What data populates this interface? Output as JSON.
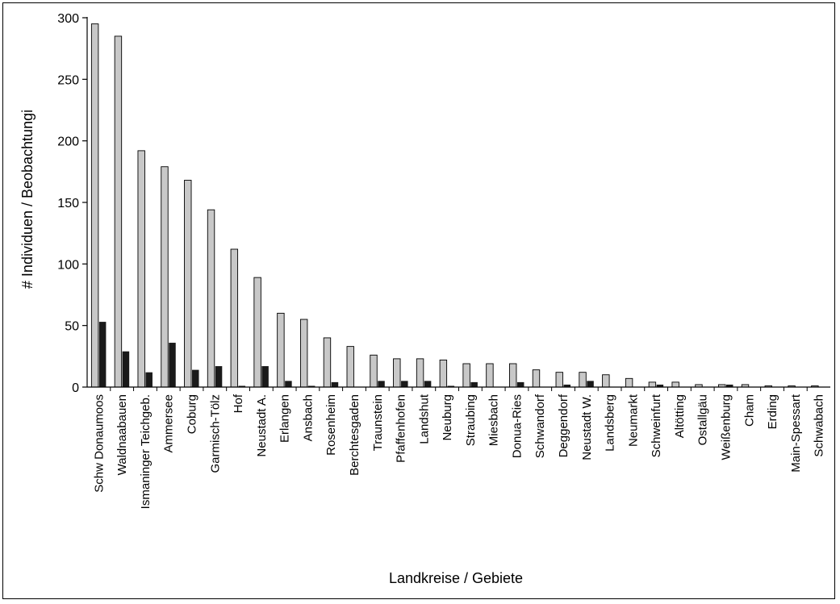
{
  "chart_data": {
    "type": "bar",
    "title": "",
    "xlabel": "Landkreise / Gebiete",
    "ylabel": "# Individuen / Beobachtungi",
    "ylim": [
      0,
      300
    ],
    "yticks": [
      0,
      50,
      100,
      150,
      200,
      250,
      300
    ],
    "grid": false,
    "legend": "none",
    "categories": [
      "Schw Donaumoos",
      "Waldnaabauen",
      "Ismaninger Teichgeb.",
      "Ammersee",
      "Coburg",
      "Garmisch-Tölz",
      "Hof",
      "Neustadt A.",
      "Erlangen",
      "Ansbach",
      "Rosenheim",
      "Berchtesgaden",
      "Traunstein",
      "Pfaffenhofen",
      "Landshut",
      "Neuburg",
      "Straubing",
      "Miesbach",
      "Donua-Ries",
      "Schwandorf",
      "Deggendorf",
      "Neustadt W.",
      "Landsberg",
      "Neumarkt",
      "Schweinfurt",
      "Altötting",
      "Ostallgäu",
      "Weißenburg",
      "Cham",
      "Erding",
      "Main-Spessart",
      "Schwabach"
    ],
    "series": [
      {
        "color": "#c8c8c8",
        "values": [
          295,
          285,
          192,
          179,
          168,
          144,
          112,
          89,
          60,
          55,
          40,
          33,
          26,
          23,
          23,
          22,
          19,
          19,
          19,
          14,
          12,
          12,
          10,
          7,
          4,
          4,
          2,
          2,
          2,
          1,
          1,
          1
        ]
      },
      {
        "color": "#1a1a1a",
        "values": [
          53,
          29,
          12,
          36,
          14,
          17,
          1,
          17,
          5,
          1,
          4,
          0,
          5,
          5,
          5,
          1,
          4,
          0,
          4,
          0,
          2,
          5,
          0,
          0,
          2,
          0,
          0,
          2,
          0,
          0,
          0,
          0
        ]
      }
    ]
  }
}
